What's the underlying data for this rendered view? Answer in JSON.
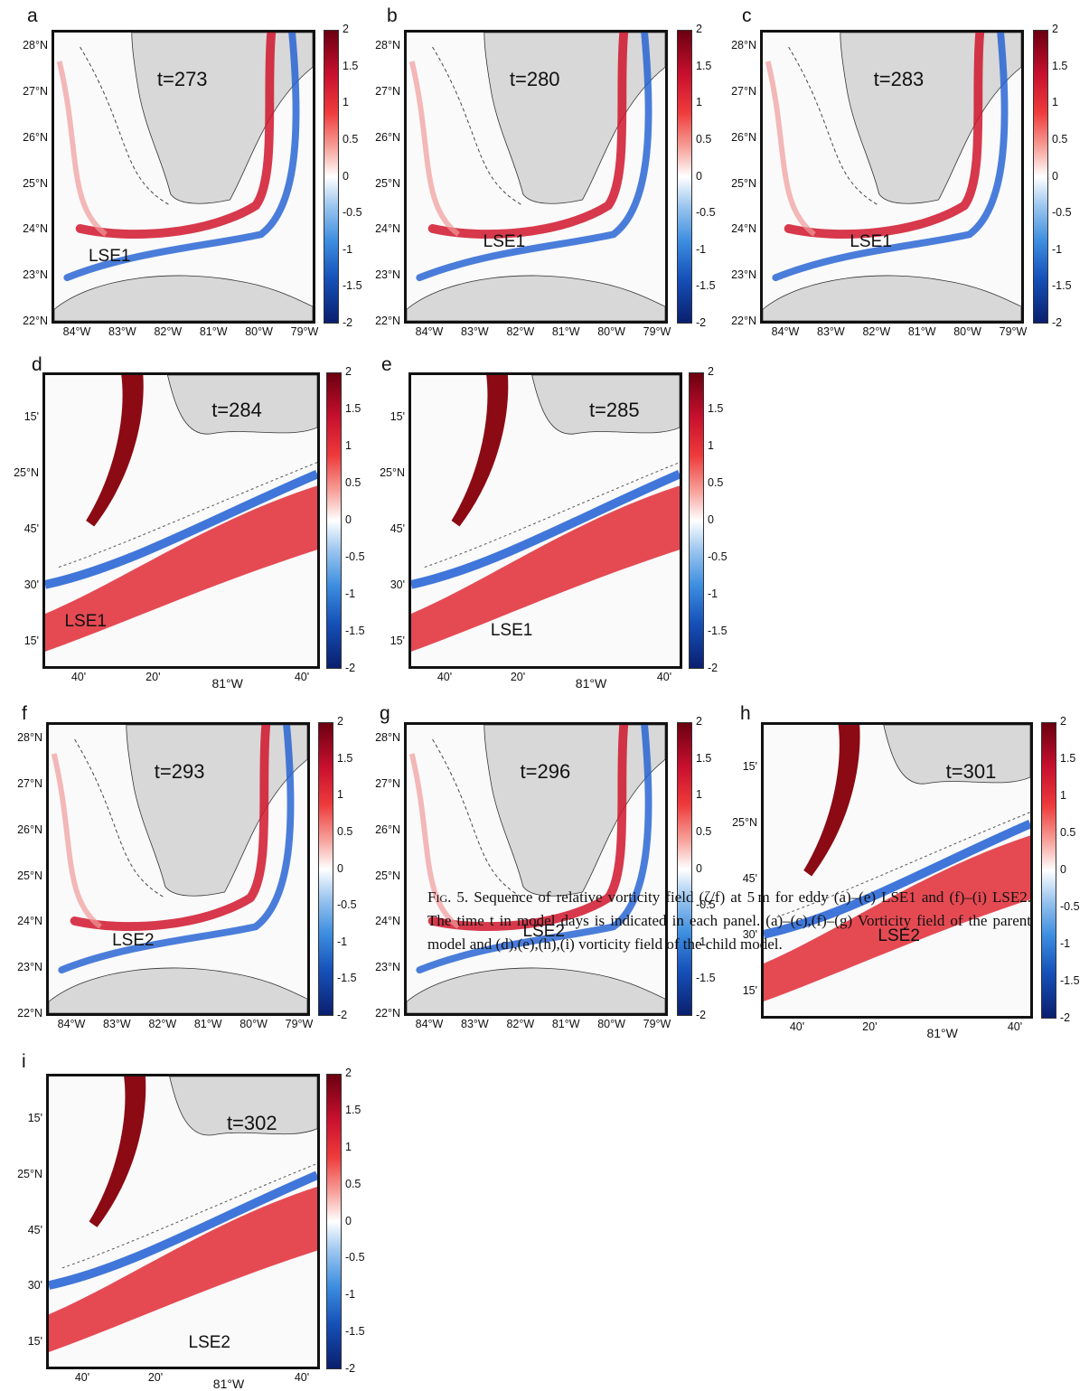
{
  "figure": {
    "panels": [
      {
        "id": "a",
        "time": "t=273",
        "eddy": "LSE1",
        "model": "parent"
      },
      {
        "id": "b",
        "time": "t=280",
        "eddy": "LSE1",
        "model": "parent"
      },
      {
        "id": "c",
        "time": "t=283",
        "eddy": "LSE1",
        "model": "parent"
      },
      {
        "id": "d",
        "time": "t=284",
        "eddy": "LSE1",
        "model": "child"
      },
      {
        "id": "e",
        "time": "t=285",
        "eddy": "LSE1",
        "model": "child"
      },
      {
        "id": "f",
        "time": "t=293",
        "eddy": "LSE2",
        "model": "parent"
      },
      {
        "id": "g",
        "time": "t=296",
        "eddy": "LSE2",
        "model": "parent"
      },
      {
        "id": "h",
        "time": "t=301",
        "eddy": "LSE2",
        "model": "child"
      },
      {
        "id": "i",
        "time": "t=302",
        "eddy": "LSE2",
        "model": "child"
      }
    ],
    "parent_axes": {
      "lat_ticks": [
        "28°N",
        "27°N",
        "26°N",
        "25°N",
        "24°N",
        "23°N",
        "22°N"
      ],
      "lon_ticks": [
        "84°W",
        "83°W",
        "82°W",
        "81°W",
        "80°W",
        "79°W"
      ]
    },
    "child_axes": {
      "lat_ticks": [
        "15'",
        "25°N",
        "45'",
        "30'",
        "15'"
      ],
      "lon_ticks": [
        "40'",
        "20'",
        "81°W",
        "40'"
      ]
    },
    "colorbar": {
      "ticks": [
        "2",
        "1.5",
        "1",
        "0.5",
        "0",
        "-0.5",
        "-1",
        "-1.5",
        "-2"
      ],
      "range": [
        -2,
        2
      ],
      "colors": {
        "max": "#6b0010",
        "zero": "#ffffff",
        "min": "#0a1f6e"
      }
    }
  },
  "caption": {
    "lead": "Fig. 5.",
    "text": " Sequence of relative vorticity field (ζ/f) at 5 m for eddy (a)–(e) LSE1 and (f)–(i) LSE2. The time t in model days is indicated in each panel. (a)–(c),(f)–(g) Vorticity field of the parent model and (d),(e),(h),(i) vorticity field of the child model."
  }
}
